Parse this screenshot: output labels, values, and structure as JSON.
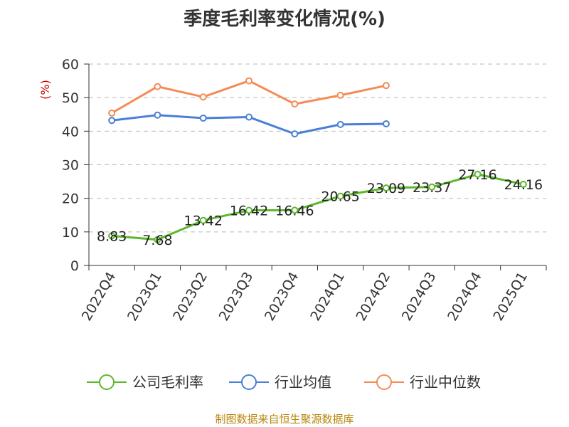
{
  "title": "季度毛利率变化情况(%)",
  "source": "制图数据来自恒生聚源数据库",
  "chart_data": {
    "type": "line",
    "title": "季度毛利率变化情况(%)",
    "ylabel": "(%)",
    "xlabel": "",
    "ylim": [
      0,
      60
    ],
    "yticks": [
      0,
      10,
      20,
      30,
      40,
      50,
      60
    ],
    "grid": true,
    "legend_position": "bottom",
    "categories": [
      "2022Q4",
      "2023Q1",
      "2023Q2",
      "2023Q3",
      "2023Q4",
      "2024Q1",
      "2024Q2",
      "2024Q3",
      "2024Q4",
      "2025Q1"
    ],
    "series": [
      {
        "name": "公司毛利率",
        "color": "#5cb82b",
        "show_labels": true,
        "values": [
          8.83,
          7.68,
          13.42,
          16.42,
          16.46,
          20.65,
          23.09,
          23.37,
          27.16,
          24.16
        ]
      },
      {
        "name": "行业均值",
        "color": "#4a7fd6",
        "show_labels": false,
        "values": [
          43.2,
          44.8,
          43.9,
          44.2,
          39.2,
          42.0,
          42.2,
          null,
          null,
          null
        ]
      },
      {
        "name": "行业中位数",
        "color": "#f58b56",
        "show_labels": false,
        "values": [
          45.4,
          53.3,
          50.2,
          55.0,
          48.1,
          50.7,
          53.6,
          null,
          null,
          null
        ]
      }
    ]
  }
}
